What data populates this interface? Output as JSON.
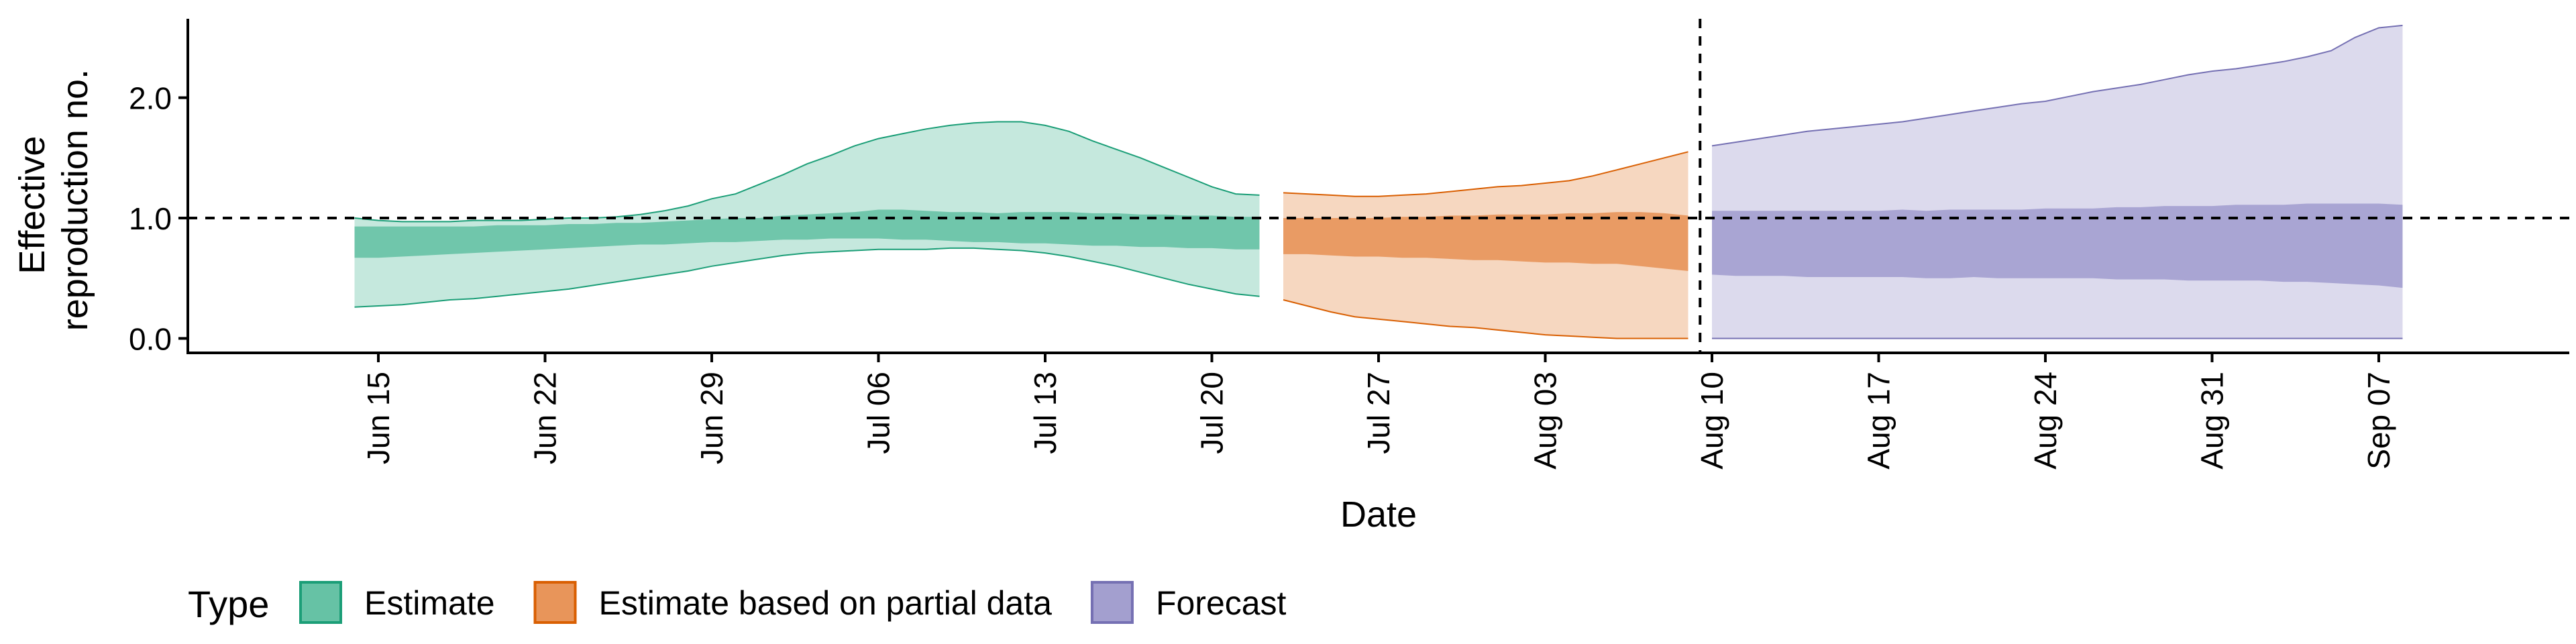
{
  "chart_data": {
    "type": "area",
    "xlabel": "Date",
    "ylabel_lines": [
      "Effective",
      "reproduction no."
    ],
    "x_ticks": [
      "Jun 15",
      "Jun 22",
      "Jun 29",
      "Jul 06",
      "Jul 13",
      "Jul 20",
      "Jul 27",
      "Aug 03",
      "Aug 10",
      "Aug 17",
      "Aug 24",
      "Aug 31",
      "Sep 07"
    ],
    "x_tick_dates": [
      "2020-06-15",
      "2020-06-22",
      "2020-06-29",
      "2020-07-06",
      "2020-07-13",
      "2020-07-20",
      "2020-07-27",
      "2020-08-03",
      "2020-08-10",
      "2020-08-17",
      "2020-08-24",
      "2020-08-31",
      "2020-09-07"
    ],
    "xlim": [
      "2020-06-07",
      "2020-09-15"
    ],
    "y_ticks": [
      "0.0",
      "1.0",
      "2.0"
    ],
    "y_tick_values": [
      0,
      1,
      2
    ],
    "ylim": [
      -0.12,
      2.7
    ],
    "reference_line_y": 1.0,
    "forecast_date_line": "2020-08-09",
    "legend": {
      "title": "Type",
      "position": "bottom",
      "entries": [
        "Estimate",
        "Estimate based on partial data",
        "Forecast"
      ]
    },
    "colors": {
      "Estimate": {
        "fill": "#66c2a5",
        "stroke": "#1b9e77"
      },
      "Estimate based on partial data": {
        "fill": "#e8955a",
        "stroke": "#d95f02"
      },
      "Forecast": {
        "fill": "#a39fcf",
        "stroke": "#7570b3"
      }
    },
    "series": [
      {
        "name": "Estimate",
        "start_date": "2020-06-14",
        "end_date": "2020-07-22",
        "outer_upper": [
          1.0,
          0.98,
          0.97,
          0.97,
          0.97,
          0.98,
          0.98,
          0.98,
          0.99,
          1.0,
          1.0,
          1.01,
          1.03,
          1.06,
          1.1,
          1.16,
          1.2,
          1.28,
          1.36,
          1.45,
          1.52,
          1.6,
          1.66,
          1.7,
          1.74,
          1.77,
          1.79,
          1.8,
          1.8,
          1.77,
          1.72,
          1.64,
          1.57,
          1.5,
          1.42,
          1.34,
          1.26,
          1.2,
          1.19
        ],
        "inner_upper": [
          0.93,
          0.93,
          0.93,
          0.93,
          0.93,
          0.93,
          0.94,
          0.94,
          0.94,
          0.95,
          0.95,
          0.96,
          0.96,
          0.97,
          0.98,
          0.99,
          1.0,
          1.0,
          1.02,
          1.03,
          1.04,
          1.05,
          1.07,
          1.07,
          1.06,
          1.05,
          1.05,
          1.04,
          1.05,
          1.05,
          1.05,
          1.04,
          1.04,
          1.03,
          1.03,
          1.02,
          1.02,
          1.01,
          1.01
        ],
        "inner_lower": [
          0.67,
          0.67,
          0.68,
          0.69,
          0.7,
          0.71,
          0.72,
          0.73,
          0.74,
          0.75,
          0.76,
          0.77,
          0.78,
          0.78,
          0.79,
          0.8,
          0.8,
          0.81,
          0.82,
          0.82,
          0.83,
          0.83,
          0.83,
          0.82,
          0.82,
          0.81,
          0.8,
          0.8,
          0.79,
          0.79,
          0.78,
          0.77,
          0.77,
          0.76,
          0.76,
          0.75,
          0.75,
          0.74,
          0.74
        ],
        "outer_lower": [
          0.26,
          0.27,
          0.28,
          0.3,
          0.32,
          0.33,
          0.35,
          0.37,
          0.39,
          0.41,
          0.44,
          0.47,
          0.5,
          0.53,
          0.56,
          0.6,
          0.63,
          0.66,
          0.69,
          0.71,
          0.72,
          0.73,
          0.74,
          0.74,
          0.74,
          0.75,
          0.75,
          0.74,
          0.73,
          0.71,
          0.68,
          0.64,
          0.6,
          0.55,
          0.5,
          0.45,
          0.41,
          0.37,
          0.35
        ]
      },
      {
        "name": "Estimate based on partial data",
        "start_date": "2020-07-23",
        "end_date": "2020-08-09",
        "outer_upper": [
          1.21,
          1.2,
          1.19,
          1.18,
          1.18,
          1.19,
          1.2,
          1.22,
          1.24,
          1.26,
          1.27,
          1.29,
          1.31,
          1.35,
          1.4,
          1.45,
          1.5,
          1.55
        ],
        "inner_upper": [
          1.0,
          1.0,
          1.0,
          1.0,
          1.0,
          1.01,
          1.01,
          1.02,
          1.02,
          1.03,
          1.03,
          1.03,
          1.04,
          1.04,
          1.05,
          1.05,
          1.04,
          1.02
        ],
        "inner_lower": [
          0.7,
          0.7,
          0.69,
          0.68,
          0.68,
          0.67,
          0.67,
          0.66,
          0.65,
          0.65,
          0.64,
          0.63,
          0.63,
          0.62,
          0.62,
          0.6,
          0.58,
          0.56
        ],
        "outer_lower": [
          0.32,
          0.27,
          0.22,
          0.18,
          0.16,
          0.14,
          0.12,
          0.1,
          0.09,
          0.07,
          0.05,
          0.03,
          0.02,
          0.01,
          0.0,
          0.0,
          0.0,
          0.0
        ]
      },
      {
        "name": "Forecast",
        "start_date": "2020-08-10",
        "end_date": "2020-09-08",
        "outer_upper": [
          1.6,
          1.63,
          1.66,
          1.69,
          1.72,
          1.74,
          1.76,
          1.78,
          1.8,
          1.83,
          1.86,
          1.89,
          1.92,
          1.95,
          1.97,
          2.01,
          2.05,
          2.08,
          2.11,
          2.15,
          2.19,
          2.22,
          2.24,
          2.27,
          2.3,
          2.34,
          2.39,
          2.5,
          2.58,
          2.6
        ],
        "inner_upper": [
          1.06,
          1.06,
          1.06,
          1.06,
          1.06,
          1.06,
          1.06,
          1.06,
          1.07,
          1.06,
          1.07,
          1.07,
          1.07,
          1.07,
          1.08,
          1.08,
          1.08,
          1.09,
          1.09,
          1.1,
          1.1,
          1.1,
          1.11,
          1.11,
          1.11,
          1.12,
          1.12,
          1.12,
          1.12,
          1.11
        ],
        "inner_lower": [
          0.53,
          0.52,
          0.52,
          0.52,
          0.51,
          0.51,
          0.51,
          0.51,
          0.51,
          0.5,
          0.5,
          0.51,
          0.5,
          0.5,
          0.5,
          0.5,
          0.5,
          0.49,
          0.49,
          0.49,
          0.48,
          0.48,
          0.48,
          0.48,
          0.47,
          0.47,
          0.46,
          0.45,
          0.44,
          0.42
        ],
        "outer_lower": [
          0,
          0,
          0,
          0,
          0,
          0,
          0,
          0,
          0,
          0,
          0,
          0,
          0,
          0,
          0,
          0,
          0,
          0,
          0,
          0,
          0,
          0,
          0,
          0,
          0,
          0,
          0,
          0,
          0,
          0
        ]
      }
    ]
  }
}
